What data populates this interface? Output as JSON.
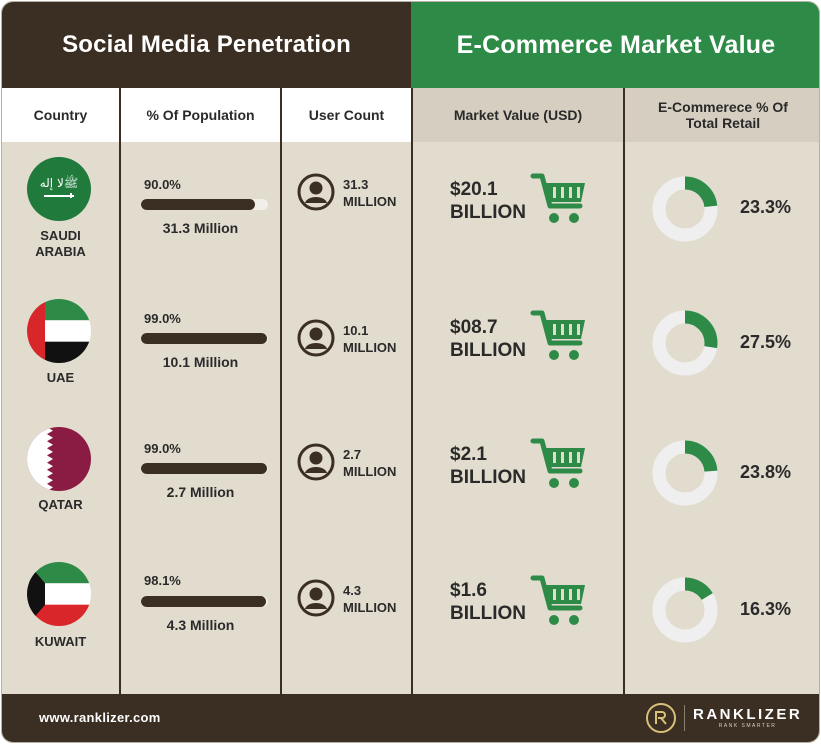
{
  "header": {
    "left_title": "Social Media Penetration",
    "right_title": "E-Commerce Market Value"
  },
  "columns": {
    "country": "Country",
    "pct_population": "% Of Population",
    "user_count": "User Count",
    "market_value": "Market Value (USD)",
    "ecom_pct": "E-Commerece % Of Total Retail"
  },
  "rows": [
    {
      "country": "SAUDI ARABIA",
      "country_line1": "SAUDI",
      "country_line2": "ARABIA",
      "flag": "saudi-arabia-flag",
      "pct_population": "90.0%",
      "pct_population_value": 90.0,
      "population_users": "31.3 Million",
      "user_count_line1": "31.3",
      "user_count_line2": "MILLION",
      "market_value_line1": "$20.1",
      "market_value_line2": "BILLION",
      "ecom_pct": "23.3%",
      "ecom_pct_value": 23.3
    },
    {
      "country": "UAE",
      "country_line1": "UAE",
      "country_line2": "",
      "flag": "uae-flag",
      "pct_population": "99.0%",
      "pct_population_value": 99.0,
      "population_users": "10.1 Million",
      "user_count_line1": "10.1",
      "user_count_line2": "MILLION",
      "market_value_line1": "$08.7",
      "market_value_line2": "BILLION",
      "ecom_pct": "27.5%",
      "ecom_pct_value": 27.5
    },
    {
      "country": "QATAR",
      "country_line1": "QATAR",
      "country_line2": "",
      "flag": "qatar-flag",
      "pct_population": "99.0%",
      "pct_population_value": 99.0,
      "population_users": "2.7 Million",
      "user_count_line1": "2.7",
      "user_count_line2": "MILLION",
      "market_value_line1": "$2.1",
      "market_value_line2": "BILLION",
      "ecom_pct": "23.8%",
      "ecom_pct_value": 23.8
    },
    {
      "country": "KUWAIT",
      "country_line1": "KUWAIT",
      "country_line2": "",
      "flag": "kuwait-flag",
      "pct_population": "98.1%",
      "pct_population_value": 98.1,
      "population_users": "4.3 Million",
      "user_count_line1": "4.3",
      "user_count_line2": "MILLION",
      "market_value_line1": "$1.6",
      "market_value_line2": "BILLION",
      "ecom_pct": "16.3%",
      "ecom_pct_value": 16.3
    }
  ],
  "footer": {
    "website": "www.ranklizer.com",
    "brand_name": "RANKLIZER",
    "brand_tagline": "RANK SMARTER"
  },
  "colors": {
    "dark_brown": "#3b2e22",
    "green": "#2e8b47",
    "background": "#e2dccf",
    "donut_track": "#efefef"
  },
  "icons": [
    "user-icon",
    "shopping-cart-icon",
    "ranklizer-logo"
  ]
}
